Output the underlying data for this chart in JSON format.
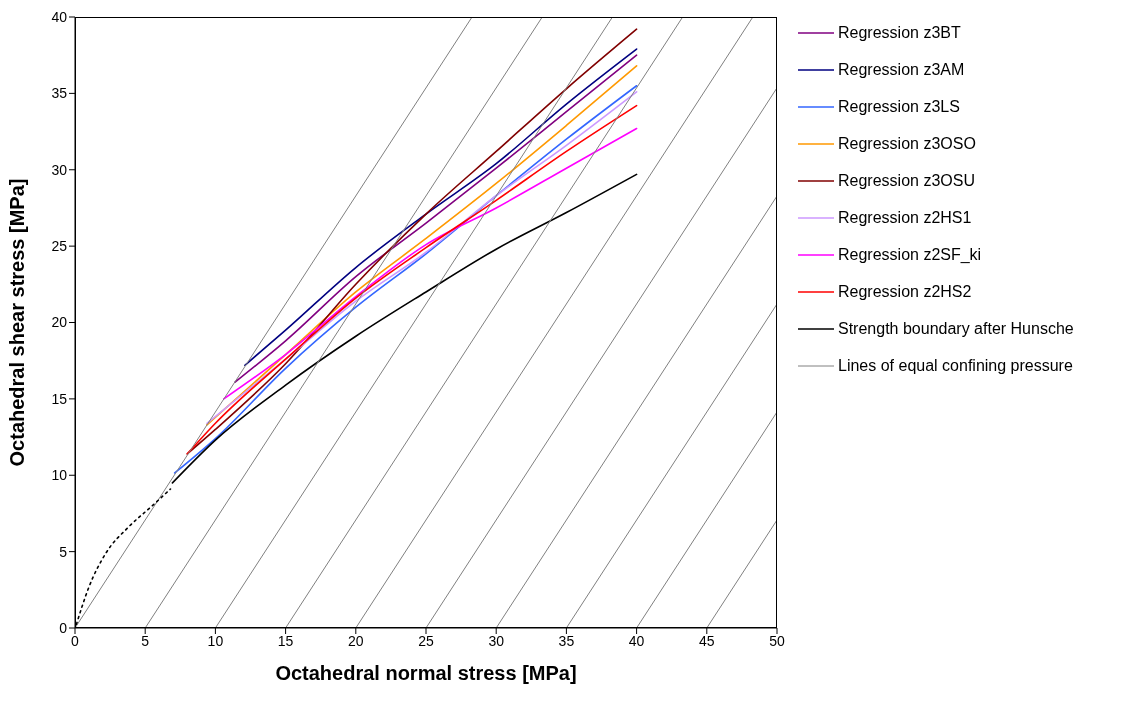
{
  "chart_data": {
    "type": "line",
    "xlabel": "Octahedral normal stress   [MPa]",
    "ylabel": "Octahedral shear stress   [MPa]",
    "xlim": [
      0,
      50
    ],
    "xticks": [
      0,
      5,
      10,
      15,
      20,
      25,
      30,
      35,
      40,
      45,
      50
    ],
    "ylim": [
      0,
      40
    ],
    "yticks": [
      0,
      5,
      10,
      15,
      20,
      25,
      30,
      35,
      40
    ],
    "grid": false,
    "legend": "right",
    "marker": "none",
    "series": [
      {
        "name": "Regression z3BT",
        "color": "#800080",
        "x": [
          11.4,
          15,
          20,
          25,
          30,
          35,
          40
        ],
        "values": [
          16.1,
          18.8,
          23.0,
          26.5,
          30.1,
          33.8,
          37.5
        ]
      },
      {
        "name": "Regression z3AM",
        "color": "#000080",
        "x": [
          12.1,
          15,
          20,
          25,
          30,
          35,
          40
        ],
        "values": [
          17.2,
          19.5,
          23.6,
          27.1,
          30.4,
          34.3,
          37.9
        ]
      },
      {
        "name": "Regression z3LS",
        "color": "#3366ff",
        "x": [
          7.1,
          10,
          15,
          20,
          25,
          30,
          35,
          40
        ],
        "values": [
          10.15,
          12.4,
          17.0,
          21.0,
          24.5,
          28.3,
          32.0,
          35.5
        ]
      },
      {
        "name": "Regression z3OSO",
        "color": "#ff9900",
        "x": [
          9.4,
          15,
          20,
          25,
          30,
          35,
          40
        ],
        "values": [
          13.3,
          17.9,
          22.0,
          25.5,
          29.1,
          32.9,
          36.8
        ]
      },
      {
        "name": "Regression z3OSU",
        "color": "#800000",
        "x": [
          8,
          10,
          15,
          20,
          25,
          30,
          35,
          40
        ],
        "values": [
          11.4,
          13.0,
          17.3,
          22.5,
          27.1,
          31.2,
          35.3,
          39.2
        ]
      },
      {
        "name": "Regression z2HS1",
        "color": "#cc99ff",
        "x": [
          9.4,
          15,
          20,
          25,
          30,
          35,
          40
        ],
        "values": [
          13.4,
          17.6,
          21.4,
          24.6,
          28.3,
          31.6,
          35.1
        ]
      },
      {
        "name": "Regression z2SF_ki",
        "color": "#ff00ff",
        "x": [
          10.6,
          15,
          20,
          25,
          30,
          35,
          40
        ],
        "values": [
          15.0,
          17.9,
          21.7,
          25.1,
          27.5,
          30.1,
          32.7
        ]
      },
      {
        "name": "Regression z2HS2",
        "color": "#ff0000",
        "x": [
          8,
          10,
          15,
          20,
          25,
          30,
          35,
          40
        ],
        "values": [
          11.4,
          13.4,
          17.6,
          21.6,
          24.9,
          28.0,
          31.2,
          34.2
        ]
      },
      {
        "name": "Strength boundary after Hunsche",
        "color": "#000000",
        "x": [
          6.94,
          10,
          15,
          20,
          25,
          30,
          35,
          40
        ],
        "values": [
          9.5,
          12.3,
          15.9,
          19.1,
          22.0,
          24.8,
          27.2,
          29.7
        ]
      },
      {
        "name": "Lines of equal confining pressure",
        "color": "#808080",
        "x": [
          0,
          28.28
        ],
        "values": [
          0,
          40
        ]
      },
      {
        "color": "#808080",
        "x": [
          5,
          33.28
        ],
        "values": [
          0,
          40
        ]
      },
      {
        "color": "#808080",
        "x": [
          10,
          38.28
        ],
        "values": [
          0,
          40
        ]
      },
      {
        "color": "#808080",
        "x": [
          15,
          43.28
        ],
        "values": [
          0,
          40
        ]
      },
      {
        "color": "#808080",
        "x": [
          20,
          48.28
        ],
        "values": [
          0,
          40
        ]
      },
      {
        "color": "#808080",
        "x": [
          25,
          50
        ],
        "values": [
          0,
          35.36
        ]
      },
      {
        "color": "#808080",
        "x": [
          30,
          50
        ],
        "values": [
          0,
          28.28
        ]
      },
      {
        "color": "#808080",
        "x": [
          35,
          50
        ],
        "values": [
          0,
          21.21
        ]
      },
      {
        "color": "#808080",
        "x": [
          40,
          50
        ],
        "values": [
          0,
          14.14
        ]
      },
      {
        "color": "#808080",
        "x": [
          45,
          50
        ],
        "values": [
          0,
          7.07
        ]
      },
      {
        "color": "#000000",
        "line_style": "dotted",
        "x": [
          0.1,
          1,
          2.2,
          3.8,
          5.5,
          6.8
        ],
        "values": [
          0.24,
          2.7,
          4.9,
          6.6,
          8.0,
          9.1
        ]
      }
    ]
  }
}
